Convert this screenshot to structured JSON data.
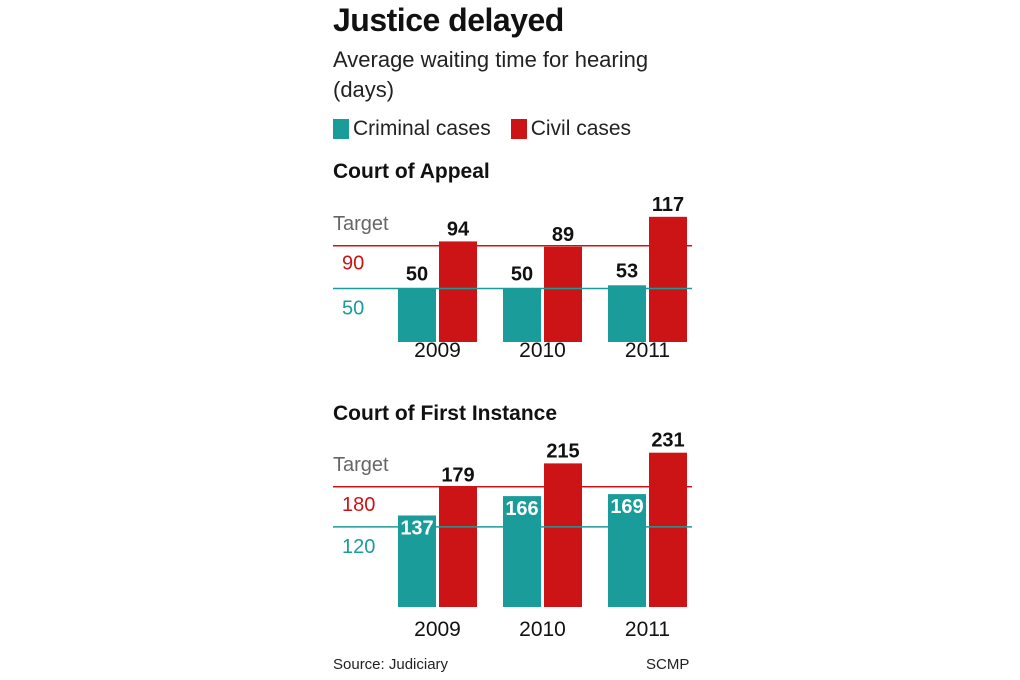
{
  "title": "Justice delayed",
  "subtitle": "Average waiting time for hearing (days)",
  "legend": [
    {
      "label": "Criminal cases",
      "color": "#1a9c9a"
    },
    {
      "label": "Civil cases",
      "color": "#cc1417"
    }
  ],
  "footer": {
    "source": "Source: Judiciary",
    "credit": "SCMP"
  },
  "chart_data": [
    {
      "type": "bar",
      "title": "Court of Appeal",
      "categories": [
        "2009",
        "2010",
        "2011"
      ],
      "series": [
        {
          "name": "Criminal cases",
          "color": "#1a9c9a",
          "values": [
            50,
            50,
            53
          ]
        },
        {
          "name": "Civil cases",
          "color": "#cc1417",
          "values": [
            94,
            89,
            117
          ]
        }
      ],
      "targets": [
        {
          "label": "Target",
          "value": null
        },
        {
          "label": "90",
          "value": 90,
          "color": "#cc1417"
        },
        {
          "label": "50",
          "value": 50,
          "color": "#1a9c9a"
        }
      ],
      "ylim": [
        0,
        120
      ]
    },
    {
      "type": "bar",
      "title": "Court of First Instance",
      "categories": [
        "2009",
        "2010",
        "2011"
      ],
      "series": [
        {
          "name": "Criminal cases",
          "color": "#1a9c9a",
          "values": [
            137,
            166,
            169
          ]
        },
        {
          "name": "Civil cases",
          "color": "#cc1417",
          "values": [
            179,
            215,
            231
          ]
        }
      ],
      "targets": [
        {
          "label": "Target",
          "value": null
        },
        {
          "label": "180",
          "value": 180,
          "color": "#cc1417"
        },
        {
          "label": "120",
          "value": 120,
          "color": "#1a9c9a"
        }
      ],
      "ylim": [
        0,
        235
      ]
    }
  ]
}
